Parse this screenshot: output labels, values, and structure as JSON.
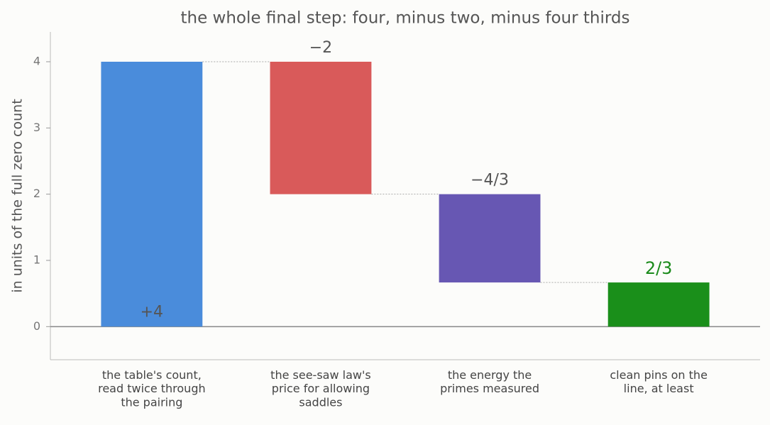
{
  "chart_data": {
    "type": "waterfall",
    "title": "the whole final step: four, minus two, minus four thirds",
    "y_label": "in units of the full zero count",
    "categories": [
      "the table's count,\nread twice through\nthe pairing",
      "the see-saw law's\nprice for allowing\nsaddles",
      "the energy the\nprimes measured",
      "clean pins on the\nline, at least"
    ],
    "values": [
      4,
      -2,
      -1.3333,
      0.6667
    ],
    "value_labels": [
      "+4",
      "−2",
      "−4/3",
      "2/3"
    ],
    "measure": [
      "relative",
      "relative",
      "relative",
      "total"
    ],
    "colors": [
      "#4a8cdb",
      "#d95a5a",
      "#6757b3",
      "#1a8f1a"
    ],
    "label_colors": [
      "#555555",
      "#555555",
      "#555555",
      "#1a8a1a"
    ],
    "ylim": [
      -0.5,
      4.45
    ],
    "yticks": [
      0,
      1,
      2,
      3,
      4
    ]
  }
}
